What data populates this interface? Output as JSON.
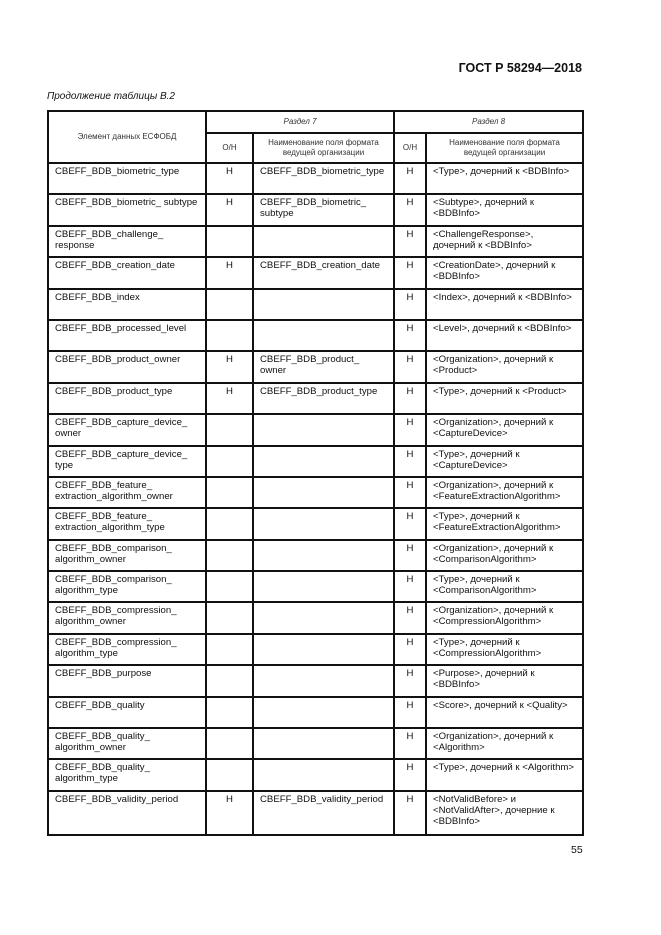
{
  "header": {
    "doc_code": "ГОСТ Р 58294—2018"
  },
  "caption": "Продолжение таблицы В.2",
  "table": {
    "col_element": "Элемент данных ЕСФОБД",
    "section7": "Раздел 7",
    "section8": "Раздел 8",
    "col_on": "О/Н",
    "col_name": "Наименование поля формата ведущей организации",
    "rows": [
      [
        "CBEFF_BDB_biometric_type",
        "Н",
        "CBEFF_BDB_biometric_type",
        "Н",
        "<Type>, дочерний к <BDBInfo>"
      ],
      [
        "CBEFF_BDB_biometric_ subtype",
        "Н",
        "CBEFF_BDB_biometric_ subtype",
        "Н",
        "<Subtype>, дочерний к <BDBInfo>"
      ],
      [
        "CBEFF_BDB_challenge_ response",
        "",
        "",
        "Н",
        "<ChallengeResponse>, дочерний к <BDBInfo>"
      ],
      [
        "CBEFF_BDB_creation_date",
        "Н",
        "CBEFF_BDB_creation_date",
        "Н",
        "<CreationDate>, дочерний к <BDBInfo>"
      ],
      [
        "CBEFF_BDB_index",
        "",
        "",
        "Н",
        "<Index>, дочерний к <BDBInfo>"
      ],
      [
        "CBEFF_BDB_processed_level",
        "",
        "",
        "Н",
        "<Level>, дочерний к <BDBInfo>"
      ],
      [
        "CBEFF_BDB_product_owner",
        "Н",
        "CBEFF_BDB_product_ owner",
        "Н",
        "<Organization>, дочерний к <Product>"
      ],
      [
        "CBEFF_BDB_product_type",
        "Н",
        "CBEFF_BDB_product_type",
        "Н",
        "<Type>, дочерний к <Product>"
      ],
      [
        "CBEFF_BDB_capture_device_ owner",
        "",
        "",
        "Н",
        "<Organization>, дочерний к <CaptureDevice>"
      ],
      [
        "CBEFF_BDB_capture_device_ type",
        "",
        "",
        "Н",
        "<Type>, дочерний к <CaptureDevice>"
      ],
      [
        "CBEFF_BDB_feature_ extraction_algorithm_owner",
        "",
        "",
        "Н",
        "<Organization>, дочерний к <FeatureExtractionAlgorithm>"
      ],
      [
        "CBEFF_BDB_feature_ extraction_algorithm_type",
        "",
        "",
        "Н",
        "<Type>, дочерний к <FeatureExtractionAlgorithm>"
      ],
      [
        "CBEFF_BDB_comparison_ algorithm_owner",
        "",
        "",
        "Н",
        "<Organization>, дочерний к <ComparisonAlgorithm>"
      ],
      [
        "CBEFF_BDB_comparison_ algorithm_type",
        "",
        "",
        "Н",
        "<Type>, дочерний к <ComparisonAlgorithm>"
      ],
      [
        "CBEFF_BDB_compression_ algorithm_owner",
        "",
        "",
        "Н",
        "<Organization>, дочерний к <CompressionAlgorithm>"
      ],
      [
        "CBEFF_BDB_compression_ algorithm_type",
        "",
        "",
        "Н",
        "<Type>, дочерний к <CompressionAlgorithm>"
      ],
      [
        "CBEFF_BDB_purpose",
        "",
        "",
        "Н",
        "<Purpose>, дочерний к <BDBInfo>"
      ],
      [
        "CBEFF_BDB_quality",
        "",
        "",
        "Н",
        "<Score>, дочерний к <Quality>"
      ],
      [
        "CBEFF_BDB_quality_ algorithm_owner",
        "",
        "",
        "Н",
        "<Organization>, дочерний к <Algorithm>"
      ],
      [
        "CBEFF_BDB_quality_ algorithm_type",
        "",
        "",
        "Н",
        "<Type>, дочерний к <Algorithm>"
      ],
      [
        "CBEFF_BDB_validity_period",
        "Н",
        "CBEFF_BDB_validity_period",
        "Н",
        "<NotValidBefore> и <NotValidAfter>, дочерние к <BDBInfo>"
      ]
    ]
  },
  "page_number": "55"
}
